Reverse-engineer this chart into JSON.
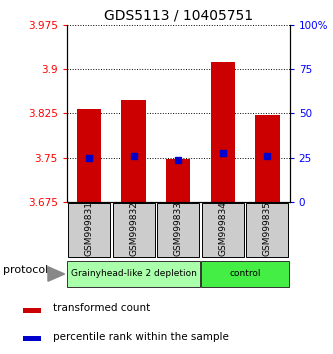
{
  "title": "GDS5113 / 10405751",
  "samples": [
    "GSM999831",
    "GSM999832",
    "GSM999833",
    "GSM999834",
    "GSM999835"
  ],
  "bar_tops": [
    3.832,
    3.848,
    3.748,
    3.912,
    3.822
  ],
  "bar_bottoms": [
    3.675,
    3.675,
    3.675,
    3.675,
    3.675
  ],
  "blue_values": [
    3.75,
    3.752,
    3.745,
    3.757,
    3.752
  ],
  "bar_color": "#cc0000",
  "blue_color": "#0000cc",
  "ylim_left": [
    3.675,
    3.975
  ],
  "yticks_left": [
    3.675,
    3.75,
    3.825,
    3.9,
    3.975
  ],
  "ytick_labels_left": [
    "3.675",
    "3.75",
    "3.825",
    "3.9",
    "3.975"
  ],
  "ylim_right": [
    0,
    100
  ],
  "yticks_right": [
    0,
    25,
    50,
    75,
    100
  ],
  "ytick_labels_right": [
    "0",
    "25",
    "50",
    "75",
    "100%"
  ],
  "group_labels": [
    "Grainyhead-like 2 depletion",
    "control"
  ],
  "group_colors": [
    "#aaffaa",
    "#44ee44"
  ],
  "group_n": [
    3,
    2
  ],
  "protocol_label": "protocol",
  "legend_labels": [
    "transformed count",
    "percentile rank within the sample"
  ],
  "legend_colors": [
    "#cc0000",
    "#0000cc"
  ],
  "bar_width": 0.55,
  "figsize": [
    3.33,
    3.54
  ],
  "dpi": 100
}
